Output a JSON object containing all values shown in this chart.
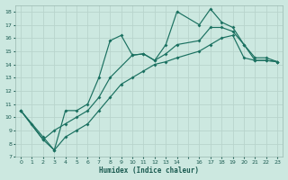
{
  "xlabel": "Humidex (Indice chaleur)",
  "background_color": "#cce8e0",
  "grid_color": "#b8d4cc",
  "line_color": "#1a7060",
  "xlim": [
    -0.5,
    23.5
  ],
  "ylim": [
    7,
    18.5
  ],
  "xtick_labels": [
    "0",
    "1",
    "2",
    "3",
    "4",
    "5",
    "6",
    "7",
    "8",
    "9",
    "10",
    "11",
    "12",
    "13",
    "14",
    "",
    "16",
    "17",
    "18",
    "19",
    "20",
    "21",
    "22",
    "23"
  ],
  "xtick_vals": [
    0,
    1,
    2,
    3,
    4,
    5,
    6,
    7,
    8,
    9,
    10,
    11,
    12,
    13,
    14,
    15,
    16,
    17,
    18,
    19,
    20,
    21,
    22,
    23
  ],
  "yticks": [
    7,
    8,
    9,
    10,
    11,
    12,
    13,
    14,
    15,
    16,
    17,
    18
  ],
  "line1_x": [
    0,
    1,
    2,
    3,
    4,
    5,
    6,
    7,
    8,
    9,
    10,
    11,
    12,
    13,
    14,
    16,
    17,
    18,
    19,
    20,
    21,
    22,
    23
  ],
  "line1_y": [
    10.5,
    9.5,
    8.5,
    7.5,
    10.5,
    10.5,
    11.0,
    13.0,
    15.8,
    16.2,
    14.7,
    14.8,
    14.3,
    15.5,
    18.0,
    17.0,
    18.2,
    17.2,
    16.8,
    15.5,
    14.3,
    14.3,
    14.2
  ],
  "line2_x": [
    0,
    2,
    3,
    4,
    5,
    6,
    7,
    8,
    10,
    11,
    12,
    13,
    14,
    16,
    17,
    18,
    19,
    20,
    21,
    22,
    23
  ],
  "line2_y": [
    10.5,
    8.3,
    9.0,
    9.5,
    10.0,
    10.5,
    11.5,
    13.0,
    14.7,
    14.8,
    14.3,
    14.8,
    15.5,
    15.8,
    16.8,
    16.8,
    16.5,
    15.5,
    14.5,
    14.5,
    14.2
  ],
  "line3_x": [
    0,
    2,
    3,
    4,
    5,
    6,
    7,
    8,
    9,
    10,
    11,
    12,
    13,
    14,
    16,
    17,
    18,
    19,
    20,
    21,
    22,
    23
  ],
  "line3_y": [
    10.5,
    8.3,
    7.5,
    8.5,
    9.0,
    9.5,
    10.5,
    11.5,
    12.5,
    13.0,
    13.5,
    14.0,
    14.2,
    14.5,
    15.0,
    15.5,
    16.0,
    16.2,
    14.5,
    14.3,
    14.3,
    14.2
  ]
}
